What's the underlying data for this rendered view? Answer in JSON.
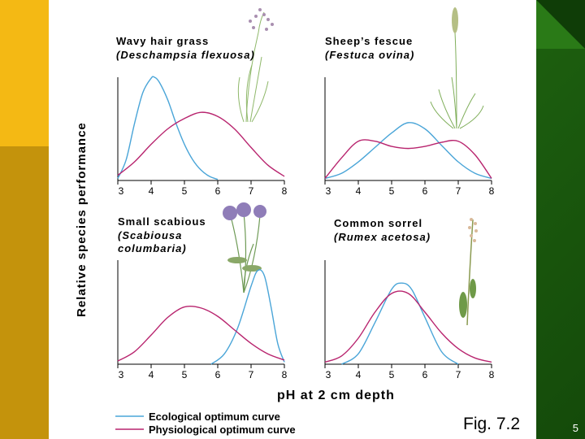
{
  "chart_data": {
    "type": "line",
    "ylabel": "Relative species performance",
    "xlabel": "pH at 2 cm depth",
    "x_ticks": [
      3,
      4,
      5,
      6,
      7,
      8
    ],
    "xlim": [
      3,
      8
    ],
    "ylim": [
      0,
      1
    ],
    "legend": [
      {
        "label": "Ecological optimum curve",
        "color": "#4aa5d8"
      },
      {
        "label": "Physiological optimum curve",
        "color": "#b8246e"
      }
    ],
    "panels": [
      {
        "name_common": "Wavy hair grass",
        "name_latin": "(Deschampsia flexuosa)",
        "series": [
          {
            "type": "ecological",
            "x": [
              3.0,
              3.25,
              3.5,
              3.75,
              4.0,
              4.1,
              4.25,
              4.5,
              4.75,
              5.0,
              5.25,
              5.5,
              5.75,
              6.0
            ],
            "y": [
              0.02,
              0.2,
              0.55,
              0.85,
              0.99,
              1.0,
              0.95,
              0.78,
              0.55,
              0.35,
              0.2,
              0.1,
              0.04,
              0.01
            ]
          },
          {
            "type": "physiological",
            "x": [
              3.0,
              3.5,
              4.0,
              4.5,
              5.0,
              5.5,
              6.0,
              6.5,
              7.0,
              7.5,
              8.0
            ],
            "y": [
              0.05,
              0.18,
              0.35,
              0.5,
              0.6,
              0.66,
              0.62,
              0.5,
              0.32,
              0.15,
              0.04
            ]
          }
        ]
      },
      {
        "name_common": "Sheep’s fescue",
        "name_latin": "(Festuca ovina)",
        "series": [
          {
            "type": "ecological",
            "x": [
              3.0,
              3.5,
              4.0,
              4.5,
              5.0,
              5.5,
              6.0,
              6.5,
              7.0,
              7.5,
              8.0
            ],
            "y": [
              0.02,
              0.07,
              0.18,
              0.32,
              0.46,
              0.56,
              0.5,
              0.34,
              0.18,
              0.07,
              0.02
            ]
          },
          {
            "type": "physiological",
            "x": [
              3.0,
              3.5,
              4.0,
              4.5,
              5.0,
              5.5,
              6.0,
              6.5,
              7.0,
              7.5,
              8.0
            ],
            "y": [
              0.02,
              0.22,
              0.38,
              0.38,
              0.33,
              0.31,
              0.33,
              0.37,
              0.38,
              0.25,
              0.02
            ]
          }
        ]
      },
      {
        "name_common": "Small scabious",
        "name_latin": "(Scabiousa columbaria)",
        "series": [
          {
            "type": "ecological",
            "x": [
              5.8,
              6.2,
              6.6,
              7.0,
              7.2,
              7.4,
              7.6,
              7.8,
              8.0
            ],
            "y": [
              0.0,
              0.1,
              0.35,
              0.75,
              0.9,
              0.85,
              0.55,
              0.2,
              0.02
            ]
          },
          {
            "type": "physiological",
            "x": [
              3.0,
              3.5,
              4.0,
              4.5,
              5.0,
              5.5,
              6.0,
              6.5,
              7.0,
              7.5,
              8.0
            ],
            "y": [
              0.03,
              0.12,
              0.28,
              0.45,
              0.55,
              0.54,
              0.46,
              0.33,
              0.2,
              0.1,
              0.04
            ]
          }
        ]
      },
      {
        "name_common": "Common sorrel",
        "name_latin": "(Rumex acetosa)",
        "series": [
          {
            "type": "ecological",
            "x": [
              3.5,
              4.0,
              4.5,
              5.0,
              5.3,
              5.6,
              6.0,
              6.5,
              7.0
            ],
            "y": [
              0.0,
              0.1,
              0.4,
              0.72,
              0.78,
              0.72,
              0.45,
              0.12,
              0.0
            ]
          },
          {
            "type": "physiological",
            "x": [
              3.0,
              3.5,
              4.0,
              4.5,
              5.0,
              5.5,
              6.0,
              6.5,
              7.0,
              7.5,
              8.0
            ],
            "y": [
              0.02,
              0.08,
              0.25,
              0.5,
              0.68,
              0.68,
              0.5,
              0.3,
              0.15,
              0.06,
              0.02
            ]
          }
        ]
      }
    ]
  },
  "caption": "Fig. 7.2",
  "slide_number": "5",
  "colors": {
    "ecological": "#4aa5d8",
    "physiological": "#b8246e",
    "background_green": "#1f6410",
    "gold": "#f4b914"
  }
}
